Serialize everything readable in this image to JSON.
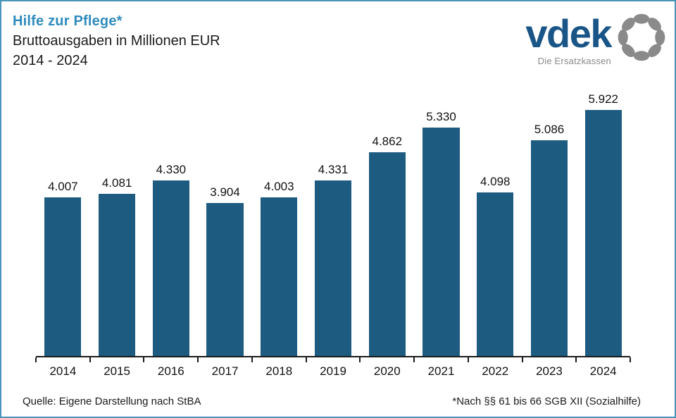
{
  "frame": {
    "border_color": "#4a93bb",
    "background": "#ffffff"
  },
  "header": {
    "title": "Hilfe zur Pflege*",
    "title_color": "#2e8bbd",
    "subtitle": "Bruttoausgaben in Millionen EUR",
    "period": "2014 - 2024"
  },
  "logo": {
    "wordmark": "vdek",
    "wordmark_color": "#1a5587",
    "tagline": "Die Ersatzkassen",
    "tagline_color": "#8a8a8a",
    "ring_icon": "dotted-circle-icon",
    "ring_color": "#8a8a8a"
  },
  "chart_data": {
    "type": "bar",
    "title": "Hilfe zur Pflege* — Bruttoausgaben in Millionen EUR, 2014 - 2024",
    "categories": [
      "2014",
      "2015",
      "2016",
      "2017",
      "2018",
      "2019",
      "2020",
      "2021",
      "2022",
      "2023",
      "2024"
    ],
    "values": [
      4007,
      4081,
      4330,
      3904,
      4003,
      4331,
      4862,
      5330,
      4098,
      5086,
      5922
    ],
    "value_labels": [
      "4.007",
      "4.081",
      "4.330",
      "3.904",
      "4.003",
      "4.331",
      "4.862",
      "5.330",
      "4.098",
      "5.086",
      "5.922"
    ],
    "bar_color": "#1d5b80",
    "xlabel": "",
    "ylabel": "Bruttoausgaben in Millionen EUR",
    "ylim": [
      1000,
      6000
    ],
    "grid": false,
    "legend": null
  },
  "footer": {
    "source": "Quelle: Eigene Darstellung nach StBA",
    "note": "*Nach §§ 61 bis 66 SGB XII (Sozialhilfe)"
  }
}
